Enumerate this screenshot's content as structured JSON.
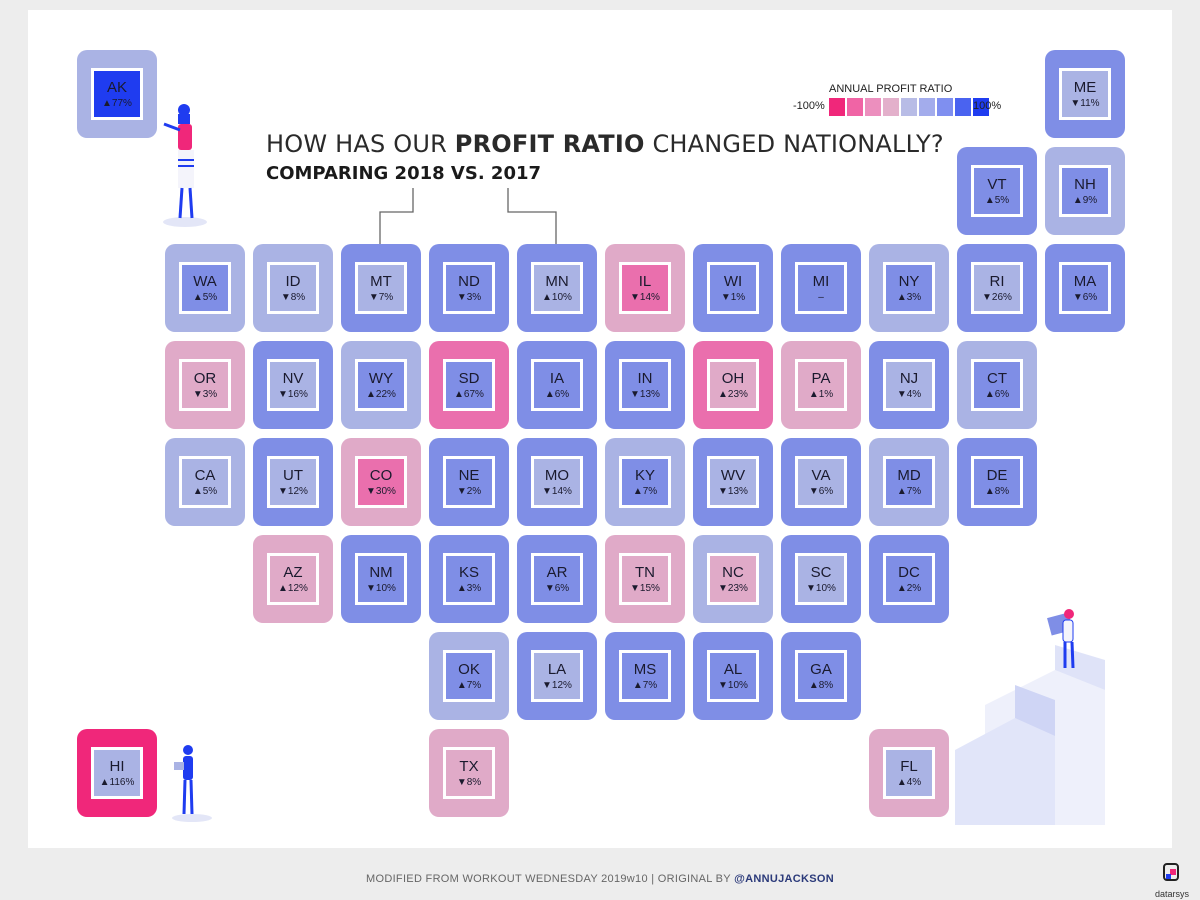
{
  "title": {
    "prefix": "HOW HAS OUR ",
    "bold": "PROFIT RATIO",
    "suffix": " CHANGED NATIONALLY?",
    "subtitle": "COMPARING 2018 VS. 2017"
  },
  "legend": {
    "title": "ANNUAL PROFIT RATIO",
    "min_label": "-100%",
    "max_label": "100%",
    "colors": [
      "#f0277a",
      "#f064a5",
      "#ec8fbe",
      "#e3b0cb",
      "#b8bce6",
      "#a3acec",
      "#7f8ff0",
      "#4a63f0",
      "#1f3cf0"
    ]
  },
  "footer": {
    "text": "MODIFIED FROM WORKOUT WEDNESDAY 2019w10 | ORIGINAL BY ",
    "credit": "@ANNUJACKSON",
    "brand": "datarsys"
  },
  "chart_data": {
    "type": "table",
    "title": "HOW HAS OUR PROFIT RATIO CHANGED NATIONALLY?",
    "subtitle": "COMPARING 2018 VS. 2017",
    "legend": "top-right",
    "states": [
      {
        "state": "AK",
        "change": "▲77%",
        "row": 0,
        "col": 0,
        "outer": "#aab3e4",
        "inner": "#1f3cf0"
      },
      {
        "state": "ME",
        "change": "▼11%",
        "row": 0,
        "col": 11,
        "outer": "#7f8ee6",
        "inner": "#aab3e4"
      },
      {
        "state": "VT",
        "change": "▲5%",
        "row": 1,
        "col": 10,
        "outer": "#7f8ee6",
        "inner": "#7f8ee6"
      },
      {
        "state": "NH",
        "change": "▲9%",
        "row": 1,
        "col": 11,
        "outer": "#aab3e4",
        "inner": "#7f8ee6"
      },
      {
        "state": "WA",
        "change": "▲5%",
        "row": 2,
        "col": 1,
        "outer": "#aab3e4",
        "inner": "#7f8ee6"
      },
      {
        "state": "ID",
        "change": "▼8%",
        "row": 2,
        "col": 2,
        "outer": "#aab3e4",
        "inner": "#aab3e4"
      },
      {
        "state": "MT",
        "change": "▼7%",
        "row": 2,
        "col": 3,
        "outer": "#7f8ee6",
        "inner": "#aab3e4"
      },
      {
        "state": "ND",
        "change": "▼3%",
        "row": 2,
        "col": 4,
        "outer": "#7f8ee6",
        "inner": "#7f8ee6"
      },
      {
        "state": "MN",
        "change": "▲10%",
        "row": 2,
        "col": 5,
        "outer": "#7f8ee6",
        "inner": "#aab3e4"
      },
      {
        "state": "IL",
        "change": "▼14%",
        "row": 2,
        "col": 6,
        "outer": "#e0aac8",
        "inner": "#ea6fad"
      },
      {
        "state": "WI",
        "change": "▼1%",
        "row": 2,
        "col": 7,
        "outer": "#7f8ee6",
        "inner": "#7f8ee6"
      },
      {
        "state": "MI",
        "change": "–",
        "row": 2,
        "col": 8,
        "outer": "#7f8ee6",
        "inner": "#7f8ee6"
      },
      {
        "state": "NY",
        "change": "▲3%",
        "row": 2,
        "col": 9,
        "outer": "#aab3e4",
        "inner": "#7f8ee6"
      },
      {
        "state": "RI",
        "change": "▼26%",
        "row": 2,
        "col": 10,
        "outer": "#7f8ee6",
        "inner": "#aab3e4"
      },
      {
        "state": "MA",
        "change": "▼6%",
        "row": 2,
        "col": 11,
        "outer": "#7f8ee6",
        "inner": "#7f8ee6"
      },
      {
        "state": "OR",
        "change": "▼3%",
        "row": 3,
        "col": 1,
        "outer": "#e0aac8",
        "inner": "#e0aac8"
      },
      {
        "state": "NV",
        "change": "▼16%",
        "row": 3,
        "col": 2,
        "outer": "#7f8ee6",
        "inner": "#aab3e4"
      },
      {
        "state": "WY",
        "change": "▲22%",
        "row": 3,
        "col": 3,
        "outer": "#aab3e4",
        "inner": "#7f8ee6"
      },
      {
        "state": "SD",
        "change": "▲67%",
        "row": 3,
        "col": 4,
        "outer": "#ea6fad",
        "inner": "#7f8ee6"
      },
      {
        "state": "IA",
        "change": "▲6%",
        "row": 3,
        "col": 5,
        "outer": "#7f8ee6",
        "inner": "#7f8ee6"
      },
      {
        "state": "IN",
        "change": "▼13%",
        "row": 3,
        "col": 6,
        "outer": "#7f8ee6",
        "inner": "#7f8ee6"
      },
      {
        "state": "OH",
        "change": "▲23%",
        "row": 3,
        "col": 7,
        "outer": "#ea6fad",
        "inner": "#e0aac8"
      },
      {
        "state": "PA",
        "change": "▲1%",
        "row": 3,
        "col": 8,
        "outer": "#e0aac8",
        "inner": "#e0aac8"
      },
      {
        "state": "NJ",
        "change": "▼4%",
        "row": 3,
        "col": 9,
        "outer": "#7f8ee6",
        "inner": "#aab3e4"
      },
      {
        "state": "CT",
        "change": "▲6%",
        "row": 3,
        "col": 10,
        "outer": "#aab3e4",
        "inner": "#7f8ee6"
      },
      {
        "state": "CA",
        "change": "▲5%",
        "row": 4,
        "col": 1,
        "outer": "#aab3e4",
        "inner": "#aab3e4"
      },
      {
        "state": "UT",
        "change": "▼12%",
        "row": 4,
        "col": 2,
        "outer": "#7f8ee6",
        "inner": "#aab3e4"
      },
      {
        "state": "CO",
        "change": "▼30%",
        "row": 4,
        "col": 3,
        "outer": "#e0aac8",
        "inner": "#ea6fad"
      },
      {
        "state": "NE",
        "change": "▼2%",
        "row": 4,
        "col": 4,
        "outer": "#7f8ee6",
        "inner": "#7f8ee6"
      },
      {
        "state": "MO",
        "change": "▼14%",
        "row": 4,
        "col": 5,
        "outer": "#7f8ee6",
        "inner": "#aab3e4"
      },
      {
        "state": "KY",
        "change": "▲7%",
        "row": 4,
        "col": 6,
        "outer": "#aab3e4",
        "inner": "#7f8ee6"
      },
      {
        "state": "WV",
        "change": "▼13%",
        "row": 4,
        "col": 7,
        "outer": "#7f8ee6",
        "inner": "#aab3e4"
      },
      {
        "state": "VA",
        "change": "▼6%",
        "row": 4,
        "col": 8,
        "outer": "#7f8ee6",
        "inner": "#aab3e4"
      },
      {
        "state": "MD",
        "change": "▲7%",
        "row": 4,
        "col": 9,
        "outer": "#aab3e4",
        "inner": "#7f8ee6"
      },
      {
        "state": "DE",
        "change": "▲8%",
        "row": 4,
        "col": 10,
        "outer": "#7f8ee6",
        "inner": "#7f8ee6"
      },
      {
        "state": "AZ",
        "change": "▲12%",
        "row": 5,
        "col": 2,
        "outer": "#e0aac8",
        "inner": "#e0aac8"
      },
      {
        "state": "NM",
        "change": "▼10%",
        "row": 5,
        "col": 3,
        "outer": "#7f8ee6",
        "inner": "#7f8ee6"
      },
      {
        "state": "KS",
        "change": "▲3%",
        "row": 5,
        "col": 4,
        "outer": "#7f8ee6",
        "inner": "#7f8ee6"
      },
      {
        "state": "AR",
        "change": "▼6%",
        "row": 5,
        "col": 5,
        "outer": "#7f8ee6",
        "inner": "#7f8ee6"
      },
      {
        "state": "TN",
        "change": "▼15%",
        "row": 5,
        "col": 6,
        "outer": "#e0aac8",
        "inner": "#e0aac8"
      },
      {
        "state": "NC",
        "change": "▼23%",
        "row": 5,
        "col": 7,
        "outer": "#aab3e4",
        "inner": "#e0aac8"
      },
      {
        "state": "SC",
        "change": "▼10%",
        "row": 5,
        "col": 8,
        "outer": "#7f8ee6",
        "inner": "#aab3e4"
      },
      {
        "state": "DC",
        "change": "▲2%",
        "row": 5,
        "col": 9,
        "outer": "#7f8ee6",
        "inner": "#7f8ee6"
      },
      {
        "state": "OK",
        "change": "▲7%",
        "row": 6,
        "col": 4,
        "outer": "#aab3e4",
        "inner": "#7f8ee6"
      },
      {
        "state": "LA",
        "change": "▼12%",
        "row": 6,
        "col": 5,
        "outer": "#7f8ee6",
        "inner": "#aab3e4"
      },
      {
        "state": "MS",
        "change": "▲7%",
        "row": 6,
        "col": 6,
        "outer": "#7f8ee6",
        "inner": "#7f8ee6"
      },
      {
        "state": "AL",
        "change": "▼10%",
        "row": 6,
        "col": 7,
        "outer": "#7f8ee6",
        "inner": "#7f8ee6"
      },
      {
        "state": "GA",
        "change": "▲8%",
        "row": 6,
        "col": 8,
        "outer": "#7f8ee6",
        "inner": "#7f8ee6"
      },
      {
        "state": "HI",
        "change": "▲116%",
        "row": 7,
        "col": 0,
        "outer": "#f0277a",
        "inner": "#aab3e4"
      },
      {
        "state": "TX",
        "change": "▼8%",
        "row": 7,
        "col": 4,
        "outer": "#e0aac8",
        "inner": "#e0aac8"
      },
      {
        "state": "FL",
        "change": "▲4%",
        "row": 7,
        "col": 9,
        "outer": "#e0aac8",
        "inner": "#aab3e4"
      }
    ]
  }
}
